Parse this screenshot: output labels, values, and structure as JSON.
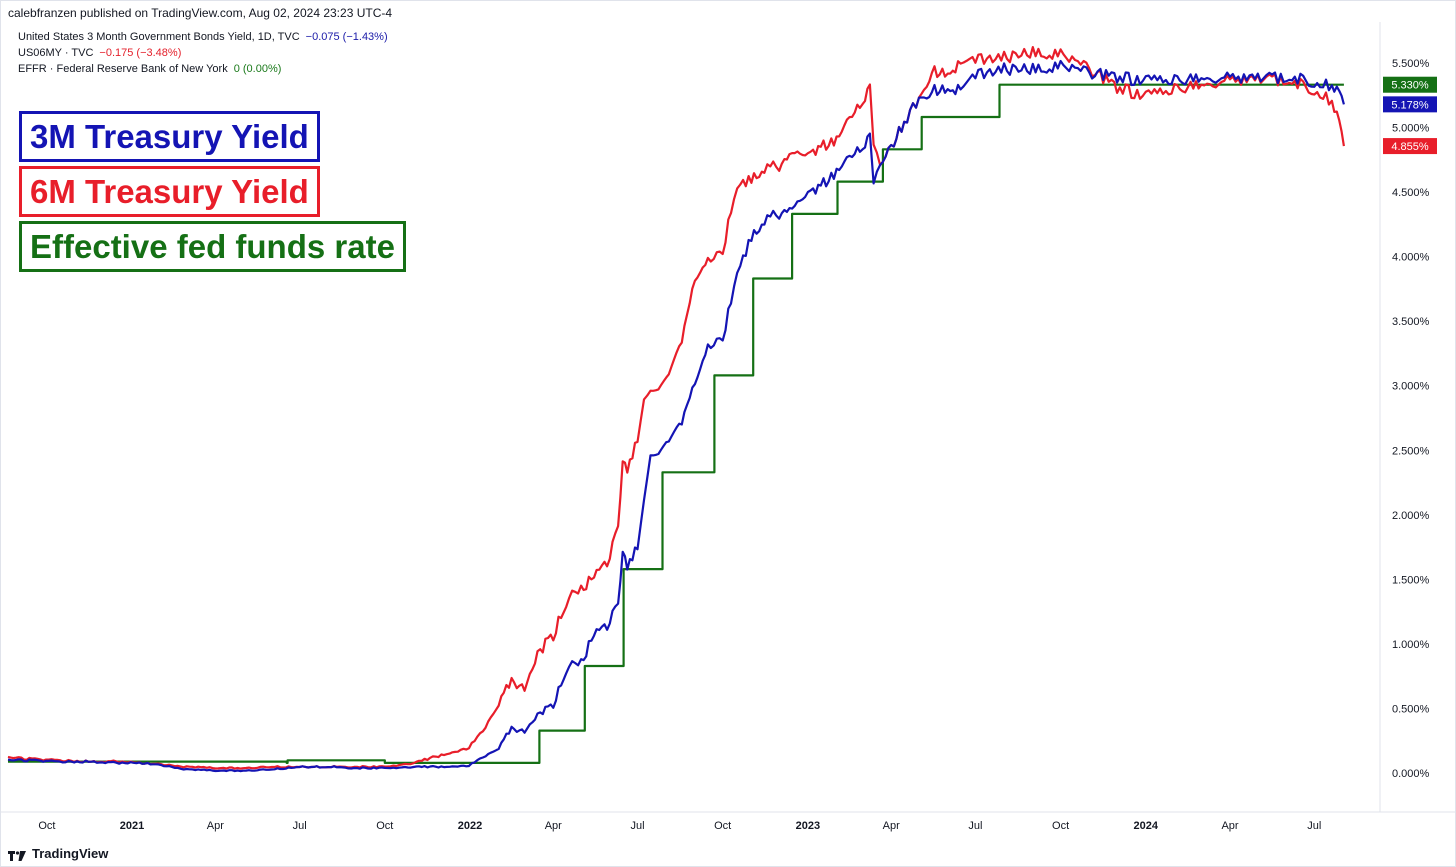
{
  "header": {
    "publisher": "calebfranzen published on TradingView.com, Aug 02, 2024 23:23 UTC-4",
    "legend": [
      {
        "name": "United States 3 Month Government Bonds Yield, 1D, TVC",
        "change": "−0.075 (−1.43%)",
        "color": "#1a1aa8"
      },
      {
        "name": "US06MY · TVC",
        "change": "−0.175 (−3.48%)",
        "color": "#e4202b"
      },
      {
        "name": "EFFR · Federal Reserve Bank of New York",
        "change": "0 (0.00%)",
        "color": "#1b7a1b"
      }
    ]
  },
  "titles": {
    "t3m": "3M Treasury Yield",
    "t6m": "6M Treasury Yield",
    "teffr": "Effective fed funds rate"
  },
  "footer": {
    "brand": "TradingView"
  },
  "colors": {
    "blue": "#1414b4",
    "red": "#e81e2a",
    "green": "#157015"
  },
  "chart_data": {
    "type": "line",
    "x_range": [
      "2020-08-20",
      "2024-09-10"
    ],
    "ylim": [
      -0.3,
      5.8
    ],
    "y_ticks": [
      "5.500%",
      "5.000%",
      "4.500%",
      "4.000%",
      "3.500%",
      "3.000%",
      "2.500%",
      "2.000%",
      "1.500%",
      "1.000%",
      "0.500%",
      "0.000%"
    ],
    "y_tick_values": [
      5.5,
      5.0,
      4.5,
      4.0,
      3.5,
      3.0,
      2.5,
      2.0,
      1.5,
      1.0,
      0.5,
      0.0
    ],
    "x_ticks": [
      {
        "label": "Oct",
        "date": "2020-10-01",
        "bold": false
      },
      {
        "label": "2021",
        "date": "2021-01-01",
        "bold": true
      },
      {
        "label": "Apr",
        "date": "2021-04-01",
        "bold": false
      },
      {
        "label": "Jul",
        "date": "2021-07-01",
        "bold": false
      },
      {
        "label": "Oct",
        "date": "2021-10-01",
        "bold": false
      },
      {
        "label": "2022",
        "date": "2022-01-01",
        "bold": true
      },
      {
        "label": "Apr",
        "date": "2022-04-01",
        "bold": false
      },
      {
        "label": "Jul",
        "date": "2022-07-01",
        "bold": false
      },
      {
        "label": "Oct",
        "date": "2022-10-01",
        "bold": false
      },
      {
        "label": "2023",
        "date": "2023-01-01",
        "bold": true
      },
      {
        "label": "Apr",
        "date": "2023-04-01",
        "bold": false
      },
      {
        "label": "Jul",
        "date": "2023-07-01",
        "bold": false
      },
      {
        "label": "Oct",
        "date": "2023-10-01",
        "bold": false
      },
      {
        "label": "2024",
        "date": "2024-01-01",
        "bold": true
      },
      {
        "label": "Apr",
        "date": "2024-04-01",
        "bold": false
      },
      {
        "label": "Jul",
        "date": "2024-07-01",
        "bold": false
      }
    ],
    "series": [
      {
        "name": "3M Treasury Yield",
        "color": "#1414b4",
        "last_label": "5.178%",
        "points": [
          [
            "2020-08-20",
            0.1
          ],
          [
            "2020-09-15",
            0.1
          ],
          [
            "2020-10-15",
            0.09
          ],
          [
            "2020-11-15",
            0.09
          ],
          [
            "2020-12-15",
            0.08
          ],
          [
            "2021-01-15",
            0.08
          ],
          [
            "2021-02-10",
            0.05
          ],
          [
            "2021-03-01",
            0.03
          ],
          [
            "2021-04-01",
            0.02
          ],
          [
            "2021-05-01",
            0.02
          ],
          [
            "2021-06-01",
            0.03
          ],
          [
            "2021-07-01",
            0.05
          ],
          [
            "2021-08-01",
            0.05
          ],
          [
            "2021-09-01",
            0.04
          ],
          [
            "2021-10-01",
            0.04
          ],
          [
            "2021-11-01",
            0.05
          ],
          [
            "2021-12-01",
            0.05
          ],
          [
            "2021-12-31",
            0.06
          ],
          [
            "2022-01-15",
            0.12
          ],
          [
            "2022-02-01",
            0.2
          ],
          [
            "2022-02-15",
            0.35
          ],
          [
            "2022-03-01",
            0.32
          ],
          [
            "2022-03-15",
            0.45
          ],
          [
            "2022-04-01",
            0.53
          ],
          [
            "2022-04-15",
            0.8
          ],
          [
            "2022-05-01",
            0.88
          ],
          [
            "2022-05-15",
            1.05
          ],
          [
            "2022-06-01",
            1.18
          ],
          [
            "2022-06-10",
            1.3
          ],
          [
            "2022-06-15",
            1.7
          ],
          [
            "2022-06-20",
            1.6
          ],
          [
            "2022-07-01",
            1.75
          ],
          [
            "2022-07-08",
            2.1
          ],
          [
            "2022-07-15",
            2.45
          ],
          [
            "2022-08-01",
            2.55
          ],
          [
            "2022-08-15",
            2.68
          ],
          [
            "2022-09-01",
            3.0
          ],
          [
            "2022-09-15",
            3.28
          ],
          [
            "2022-10-01",
            3.35
          ],
          [
            "2022-10-10",
            3.65
          ],
          [
            "2022-10-20",
            3.95
          ],
          [
            "2022-11-01",
            4.15
          ],
          [
            "2022-11-15",
            4.28
          ],
          [
            "2022-12-01",
            4.33
          ],
          [
            "2022-12-15",
            4.35
          ],
          [
            "2023-01-01",
            4.5
          ],
          [
            "2023-01-15",
            4.55
          ],
          [
            "2023-02-01",
            4.65
          ],
          [
            "2023-02-15",
            4.75
          ],
          [
            "2023-03-01",
            4.85
          ],
          [
            "2023-03-09",
            4.92
          ],
          [
            "2023-03-13",
            4.6
          ],
          [
            "2023-03-20",
            4.7
          ],
          [
            "2023-04-01",
            4.85
          ],
          [
            "2023-04-15",
            5.05
          ],
          [
            "2023-05-01",
            5.2
          ],
          [
            "2023-05-15",
            5.3
          ],
          [
            "2023-06-01",
            5.28
          ],
          [
            "2023-06-15",
            5.3
          ],
          [
            "2023-07-01",
            5.4
          ],
          [
            "2023-08-01",
            5.45
          ],
          [
            "2023-09-01",
            5.45
          ],
          [
            "2023-10-01",
            5.48
          ],
          [
            "2023-11-01",
            5.42
          ],
          [
            "2023-12-01",
            5.38
          ],
          [
            "2024-01-01",
            5.37
          ],
          [
            "2024-02-01",
            5.37
          ],
          [
            "2024-03-01",
            5.37
          ],
          [
            "2024-04-01",
            5.38
          ],
          [
            "2024-05-01",
            5.39
          ],
          [
            "2024-06-01",
            5.38
          ],
          [
            "2024-07-01",
            5.36
          ],
          [
            "2024-07-20",
            5.32
          ],
          [
            "2024-07-28",
            5.28
          ],
          [
            "2024-08-02",
            5.178
          ]
        ]
      },
      {
        "name": "6M Treasury Yield",
        "color": "#e81e2a",
        "last_label": "4.855%",
        "points": [
          [
            "2020-08-20",
            0.12
          ],
          [
            "2020-09-15",
            0.11
          ],
          [
            "2020-10-15",
            0.1
          ],
          [
            "2020-11-15",
            0.09
          ],
          [
            "2020-12-15",
            0.09
          ],
          [
            "2021-01-15",
            0.08
          ],
          [
            "2021-02-10",
            0.06
          ],
          [
            "2021-03-01",
            0.05
          ],
          [
            "2021-04-01",
            0.04
          ],
          [
            "2021-05-01",
            0.04
          ],
          [
            "2021-06-01",
            0.05
          ],
          [
            "2021-07-01",
            0.05
          ],
          [
            "2021-08-01",
            0.05
          ],
          [
            "2021-09-01",
            0.05
          ],
          [
            "2021-10-01",
            0.05
          ],
          [
            "2021-11-01",
            0.08
          ],
          [
            "2021-12-01",
            0.14
          ],
          [
            "2021-12-31",
            0.2
          ],
          [
            "2022-01-15",
            0.32
          ],
          [
            "2022-02-01",
            0.55
          ],
          [
            "2022-02-15",
            0.72
          ],
          [
            "2022-03-01",
            0.65
          ],
          [
            "2022-03-15",
            0.92
          ],
          [
            "2022-04-01",
            1.07
          ],
          [
            "2022-04-15",
            1.32
          ],
          [
            "2022-05-01",
            1.45
          ],
          [
            "2022-05-15",
            1.5
          ],
          [
            "2022-06-01",
            1.68
          ],
          [
            "2022-06-10",
            1.9
          ],
          [
            "2022-06-15",
            2.4
          ],
          [
            "2022-06-20",
            2.35
          ],
          [
            "2022-07-01",
            2.58
          ],
          [
            "2022-07-08",
            2.88
          ],
          [
            "2022-07-15",
            2.95
          ],
          [
            "2022-08-01",
            3.05
          ],
          [
            "2022-08-15",
            3.28
          ],
          [
            "2022-09-01",
            3.8
          ],
          [
            "2022-09-15",
            3.95
          ],
          [
            "2022-10-01",
            4.02
          ],
          [
            "2022-10-10",
            4.35
          ],
          [
            "2022-10-20",
            4.58
          ],
          [
            "2022-11-01",
            4.6
          ],
          [
            "2022-11-15",
            4.68
          ],
          [
            "2022-12-01",
            4.7
          ],
          [
            "2022-12-15",
            4.78
          ],
          [
            "2023-01-01",
            4.8
          ],
          [
            "2023-01-15",
            4.85
          ],
          [
            "2023-02-01",
            4.9
          ],
          [
            "2023-02-15",
            5.05
          ],
          [
            "2023-03-01",
            5.2
          ],
          [
            "2023-03-09",
            5.3
          ],
          [
            "2023-03-13",
            4.9
          ],
          [
            "2023-03-20",
            4.7
          ],
          [
            "2023-04-01",
            4.85
          ],
          [
            "2023-04-15",
            5.05
          ],
          [
            "2023-05-01",
            5.2
          ],
          [
            "2023-05-15",
            5.45
          ],
          [
            "2023-06-01",
            5.4
          ],
          [
            "2023-06-15",
            5.5
          ],
          [
            "2023-07-01",
            5.52
          ],
          [
            "2023-08-01",
            5.54
          ],
          [
            "2023-09-01",
            5.58
          ],
          [
            "2023-10-01",
            5.57
          ],
          [
            "2023-11-01",
            5.45
          ],
          [
            "2023-12-01",
            5.3
          ],
          [
            "2024-01-01",
            5.25
          ],
          [
            "2024-02-01",
            5.3
          ],
          [
            "2024-03-01",
            5.32
          ],
          [
            "2024-04-01",
            5.36
          ],
          [
            "2024-05-01",
            5.38
          ],
          [
            "2024-06-01",
            5.36
          ],
          [
            "2024-07-01",
            5.3
          ],
          [
            "2024-07-20",
            5.2
          ],
          [
            "2024-07-28",
            5.05
          ],
          [
            "2024-08-02",
            4.855
          ]
        ]
      },
      {
        "name": "Effective fed funds rate",
        "color": "#157015",
        "last_label": "5.330%",
        "step": true,
        "points": [
          [
            "2020-08-20",
            0.09
          ],
          [
            "2021-06-17",
            0.08
          ],
          [
            "2021-06-18",
            0.1
          ],
          [
            "2021-10-01",
            0.08
          ],
          [
            "2022-03-17",
            0.33
          ],
          [
            "2022-05-05",
            0.83
          ],
          [
            "2022-06-16",
            1.58
          ],
          [
            "2022-07-28",
            2.33
          ],
          [
            "2022-09-22",
            3.08
          ],
          [
            "2022-11-03",
            3.83
          ],
          [
            "2022-12-15",
            4.33
          ],
          [
            "2023-02-02",
            4.58
          ],
          [
            "2023-03-23",
            4.83
          ],
          [
            "2023-05-04",
            5.08
          ],
          [
            "2023-07-27",
            5.33
          ],
          [
            "2024-08-02",
            5.33
          ]
        ]
      }
    ]
  }
}
